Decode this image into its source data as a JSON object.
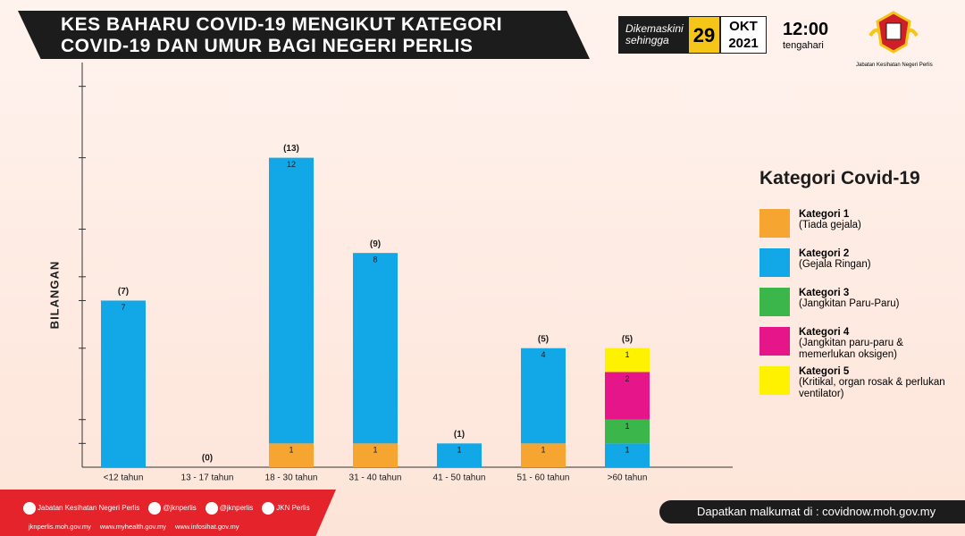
{
  "header": {
    "title_lines": [
      "KES BAHARU COVID-19 MENGIKUT KATEGORI",
      "COVID-19 DAN UMUR BAGI NEGERI PERLIS"
    ],
    "updated_label": "Dikemaskini sehingga",
    "day": "29",
    "month": "OKT",
    "year": "2021",
    "time": "12:00",
    "time_note": "tengahari",
    "logo_text": "Jabatan Kesihatan Negeri Perlis"
  },
  "chart_data": {
    "type": "stacked_bar",
    "ylabel": "BILANGAN",
    "categories": [
      "<12 tahun",
      "13 - 17 tahun",
      "18 - 30 tahun",
      "31 - 40 tahun",
      "41 - 50 tahun",
      "51 - 60 tahun",
      ">60 tahun"
    ],
    "series": [
      {
        "name": "Kategori 1",
        "description": "(Tiada gejala)",
        "color": "#f6a531",
        "values": [
          0,
          0,
          1,
          1,
          0,
          1,
          0
        ]
      },
      {
        "name": "Kategori 2",
        "description": "(Gejala Ringan)",
        "color": "#12a8e8",
        "values": [
          7,
          0,
          12,
          8,
          1,
          4,
          1
        ]
      },
      {
        "name": "Kategori 3",
        "description": "(Jangkitan Paru-Paru)",
        "color": "#3bb64a",
        "values": [
          0,
          0,
          0,
          0,
          0,
          0,
          1
        ]
      },
      {
        "name": "Kategori 4",
        "description": "(Jangkitan paru-paru & memerlukan oksigen)",
        "color": "#e6158a",
        "values": [
          0,
          0,
          0,
          0,
          0,
          0,
          2
        ]
      },
      {
        "name": "Kategori 5",
        "description": "(Kritikal, organ rosak & perlukan ventilator)",
        "color": "#fff200",
        "values": [
          0,
          0,
          0,
          0,
          0,
          0,
          1
        ]
      }
    ],
    "totals": {
      "values": [
        7,
        0,
        13,
        9,
        1,
        5,
        5
      ],
      "value_labels": [
        "(7)",
        "(0)",
        "(13)",
        "(9)",
        "(1)",
        "(5)",
        "(5)"
      ]
    },
    "ylim": [
      0,
      17
    ],
    "yticks": [
      1,
      2,
      5,
      7,
      8,
      10,
      13,
      16
    ],
    "legend_title": "Kategori Covid-19"
  },
  "footer": {
    "social": [
      "Jabatan Kesihatan Negeri Perlis",
      "@jknperlis",
      "@jknperlis",
      "JKN Perlis"
    ],
    "websites": [
      "jknperlis.moh.gov.my",
      "www.myhealth.gov.my",
      "www.infosihat.gov.my"
    ],
    "source": "Dapatkan malkumat di : covidnow.moh.gov.my"
  }
}
